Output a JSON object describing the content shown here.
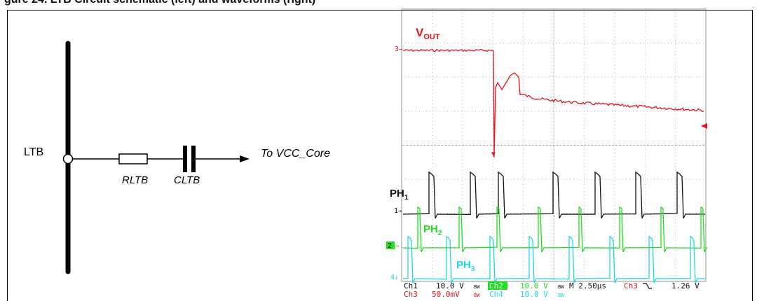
{
  "title": "gure 24. LTB Circuit schematic (left) and waveforms (right)",
  "schematic": {
    "node_label": "LTB",
    "resistor_label": "RLTB",
    "capacitor_label": "CLTB",
    "output_label": "To VCC_Core"
  },
  "scope": {
    "traces": {
      "vout": {
        "label": "V",
        "sub": "OUT",
        "color": "#e0141e",
        "marker": "3"
      },
      "ph1": {
        "label": "PH",
        "sub": "1",
        "color": "#111111",
        "marker": "1"
      },
      "ph2": {
        "label": "PH",
        "sub": "2",
        "color": "#22dd22",
        "marker": "2"
      },
      "ph3": {
        "label": "PH",
        "sub": "3",
        "color": "#1fd6e6",
        "marker": "4"
      }
    },
    "status_row1": {
      "ch1": "Ch1",
      "ch1_val": "10.0 V",
      "ch2": "Ch2",
      "ch2_val": "10.0 V",
      "timebase": "M 2.50µs",
      "trig_ch": "Ch3",
      "trig_level": "1.26 V"
    },
    "status_row2": {
      "ch3": "Ch3",
      "ch3_val": "50.0mV",
      "ch4": "Ch4",
      "ch4_val": "10.0 V"
    },
    "bw_mark": "BW"
  }
}
